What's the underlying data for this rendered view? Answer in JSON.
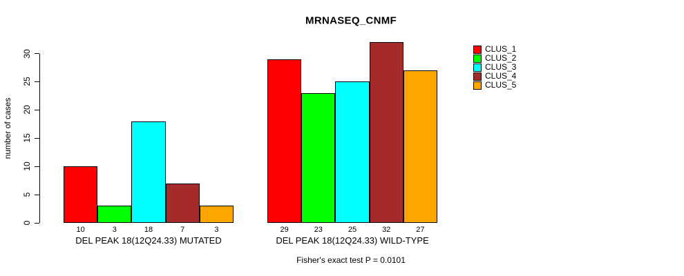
{
  "chart_data": {
    "type": "bar",
    "title": "MRNASEQ_CNMF",
    "xlabel": "",
    "ylabel": "number of cases",
    "annotation": "Fisher's exact test P = 0.0101",
    "yticks": [
      0,
      5,
      10,
      15,
      20,
      25,
      30
    ],
    "ylim": [
      0,
      33
    ],
    "grid": false,
    "legend_position": "right",
    "series_names": [
      "CLUS_1",
      "CLUS_2",
      "CLUS_3",
      "CLUS_4",
      "CLUS_5"
    ],
    "colors": [
      "#FF0000",
      "#00FF00",
      "#00FFFF",
      "#A52A2A",
      "#FFA500"
    ],
    "groups": [
      {
        "label": "DEL PEAK 18(12Q24.33) MUTATED",
        "values": [
          10,
          3,
          18,
          7,
          3
        ]
      },
      {
        "label": "DEL PEAK 18(12Q24.33) WILD-TYPE",
        "values": [
          29,
          23,
          25,
          32,
          27
        ]
      }
    ]
  }
}
